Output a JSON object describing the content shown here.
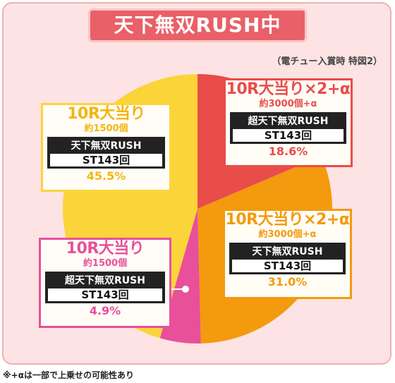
{
  "header": {
    "title": "天下無双RUSH中",
    "note": "（電チュー入賞時 特図2）"
  },
  "footnote": "※+αは一部で上乗せの可能性あり",
  "colors": {
    "red": "#e84d4a",
    "orange": "#f39a0e",
    "pink": "#e8509a",
    "yellow": "#fbd43a"
  },
  "chart_data": {
    "type": "pie",
    "unit": "%",
    "slices": [
      {
        "title": "10R大当り×2+α",
        "sub": "約3000個+α",
        "rush": "超天下無双RUSH",
        "st": "ST143回",
        "value": 18.6,
        "label": "18.6%",
        "color": "#e84d4a"
      },
      {
        "title": "10R大当り×2+α",
        "sub": "約3000個+α",
        "rush": "天下無双RUSH",
        "st": "ST143回",
        "value": 31.0,
        "label": "31.0%",
        "color": "#f39a0e"
      },
      {
        "title": "10R大当り",
        "sub": "約1500個",
        "rush": "超天下無双RUSH",
        "st": "ST143回",
        "value": 4.9,
        "label": "4.9%",
        "color": "#e8509a"
      },
      {
        "title": "10R大当り",
        "sub": "約1500個",
        "rush": "天下無双RUSH",
        "st": "ST143回",
        "value": 45.5,
        "label": "45.5%",
        "color": "#fbd43a"
      }
    ]
  }
}
